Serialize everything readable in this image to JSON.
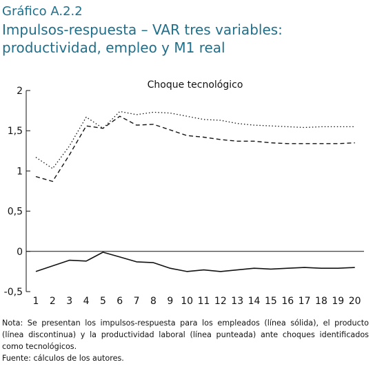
{
  "header": {
    "label": "Gráfico A.2.2",
    "title_line1": "Impulsos-respuesta – VAR tres variables:",
    "title_line2": "productividad, empleo y M1 real"
  },
  "chart_data": {
    "type": "line",
    "title": "Choque tecnológico",
    "x": [
      1,
      2,
      3,
      4,
      5,
      6,
      7,
      8,
      9,
      10,
      11,
      12,
      13,
      14,
      15,
      16,
      17,
      18,
      19,
      20
    ],
    "x_tick_labels": [
      "1",
      "2",
      "3",
      "4",
      "5",
      "6",
      "7",
      "8",
      "9",
      "10",
      "11",
      "12",
      "13",
      "14",
      "15",
      "16",
      "17",
      "18",
      "19",
      "20"
    ],
    "ylim": [
      -0.5,
      2
    ],
    "y_ticks": [
      -0.5,
      0,
      0.5,
      1,
      1.5,
      2
    ],
    "y_tick_labels": [
      "-0,5",
      "0",
      "0,5",
      "1",
      "1,5",
      "2"
    ],
    "zero_line": true,
    "grid": false,
    "series": [
      {
        "style": "solid",
        "values": [
          -0.25,
          -0.18,
          -0.11,
          -0.12,
          -0.01,
          -0.07,
          -0.13,
          -0.14,
          -0.21,
          -0.25,
          -0.23,
          -0.25,
          -0.23,
          -0.21,
          -0.22,
          -0.21,
          -0.2,
          -0.21,
          -0.21,
          -0.2
        ]
      },
      {
        "style": "dashed",
        "values": [
          0.93,
          0.87,
          1.2,
          1.56,
          1.53,
          1.68,
          1.57,
          1.58,
          1.51,
          1.44,
          1.42,
          1.39,
          1.37,
          1.37,
          1.35,
          1.34,
          1.34,
          1.34,
          1.34,
          1.35
        ]
      },
      {
        "style": "dotted",
        "values": [
          1.17,
          1.03,
          1.31,
          1.67,
          1.53,
          1.74,
          1.7,
          1.73,
          1.72,
          1.68,
          1.64,
          1.63,
          1.59,
          1.57,
          1.56,
          1.55,
          1.54,
          1.55,
          1.55,
          1.55
        ]
      }
    ]
  },
  "notes": {
    "line1": "Nota: Se presentan los impulsos-respuesta para los empleados (línea sólida), el producto (línea discontinua) y la productividad laboral (línea punteada) ante choques identificados como tecnológicos.",
    "line2": "Fuente: cálculos de los autores."
  }
}
